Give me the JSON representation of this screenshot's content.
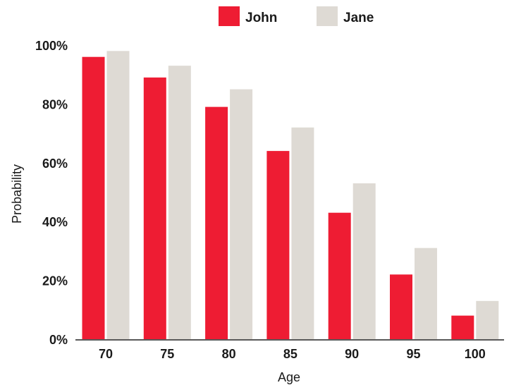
{
  "chart_data": {
    "type": "bar",
    "title": "",
    "xlabel": "Age",
    "ylabel": "Probability",
    "categories": [
      "70",
      "75",
      "80",
      "85",
      "90",
      "95",
      "100"
    ],
    "series": [
      {
        "name": "John",
        "values": [
          96,
          89,
          79,
          64,
          43,
          22,
          8
        ],
        "color": "#ee1c33"
      },
      {
        "name": "Jane",
        "values": [
          98,
          93,
          85,
          72,
          53,
          31,
          13
        ],
        "color": "#deda d4"
      }
    ],
    "ylim": [
      0,
      100
    ],
    "yticks": [
      0,
      20,
      40,
      60,
      80,
      100
    ],
    "ytick_labels": [
      "0%",
      "20%",
      "40%",
      "60%",
      "80%",
      "100%"
    ],
    "grid": false,
    "legend_position": "top"
  }
}
